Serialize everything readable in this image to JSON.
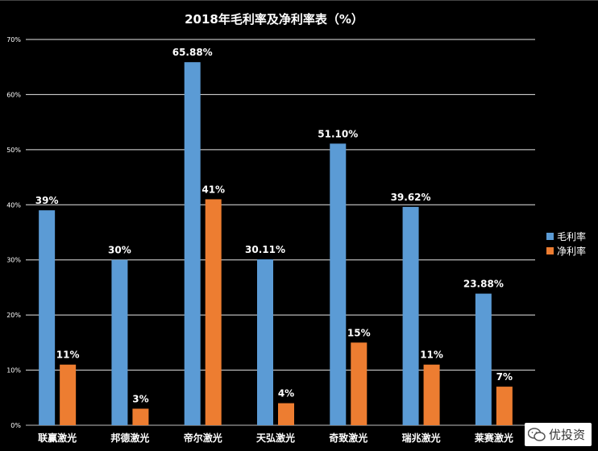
{
  "chart_data": {
    "type": "bar",
    "title": "2018年毛利率及净利率表（%）",
    "categories": [
      "联赢激光",
      "邦德激光",
      "帝尔激光",
      "天弘激光",
      "奇致激光",
      "瑞兆激光",
      "莱赛激光"
    ],
    "series": [
      {
        "name": "毛利率",
        "color": "#5b9bd5",
        "values": [
          39,
          30,
          65.88,
          30.11,
          51.1,
          39.62,
          23.88
        ],
        "labels": [
          "39%",
          "30%",
          "65.88%",
          "30.11%",
          "51.10%",
          "39.62%",
          "23.88%"
        ]
      },
      {
        "name": "净利率",
        "color": "#ed7d31",
        "values": [
          11,
          3,
          41,
          4,
          15,
          11,
          7
        ],
        "labels": [
          "11%",
          "3%",
          "41%",
          "4%",
          "15%",
          "11%",
          "7%"
        ]
      }
    ],
    "ylim": [
      0,
      70
    ],
    "yticks": [
      "0%",
      "10%",
      "20%",
      "30%",
      "40%",
      "50%",
      "60%",
      "70%"
    ],
    "grid": true,
    "legend": "right"
  },
  "watermark": {
    "text": "优投资",
    "icon": "wechat-icon"
  }
}
